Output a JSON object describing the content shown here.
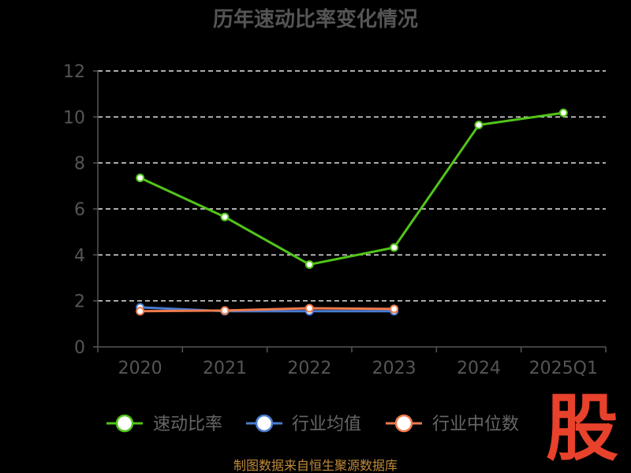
{
  "chart_data": {
    "type": "line",
    "title": "历年速动比率变化情况",
    "categories": [
      "2020",
      "2021",
      "2022",
      "2023",
      "2024",
      "2025Q1"
    ],
    "ylim": [
      0,
      12
    ],
    "yticks": [
      "0",
      "2",
      "4",
      "6",
      "8",
      "10",
      "12"
    ],
    "grid": true,
    "legend_position": "bottom",
    "series": [
      {
        "name": "速动比率",
        "color": "#52c41a",
        "values": [
          7.35,
          5.65,
          3.58,
          4.32,
          9.65,
          10.18
        ]
      },
      {
        "name": "行业均值",
        "color": "#4a7bd0",
        "values": [
          1.72,
          1.55,
          1.55,
          1.55,
          null,
          null
        ]
      },
      {
        "name": "行业中位数",
        "color": "#ef7a4d",
        "values": [
          1.55,
          1.58,
          1.68,
          1.65,
          null,
          null
        ]
      }
    ]
  },
  "footer": {
    "source": "制图数据来自恒生聚源数据库"
  },
  "logo": {
    "text": "股"
  }
}
